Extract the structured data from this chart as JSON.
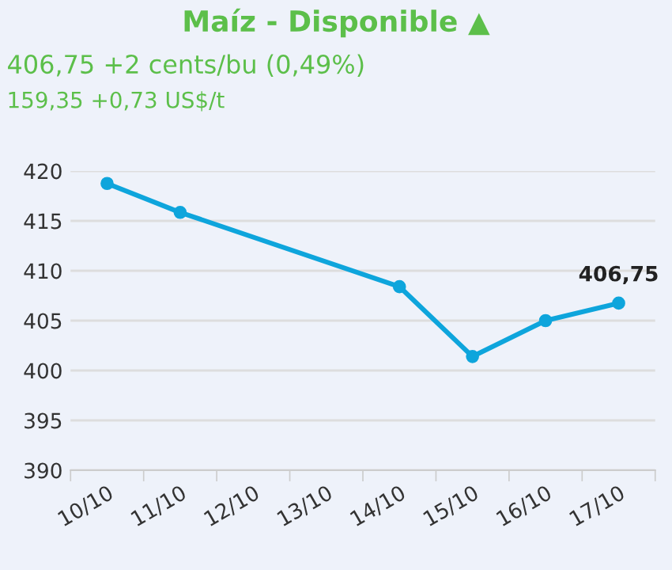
{
  "chart_data": {
    "type": "line",
    "title": "Maíz - Disponible ▲",
    "subtitle": "406,75 +2 cents/bu (0,49%)",
    "annotations": [
      "159,35 +0,73 US$/t"
    ],
    "categories": [
      "10/10",
      "11/10",
      "12/10",
      "13/10",
      "14/10",
      "15/10",
      "16/10",
      "17/10"
    ],
    "series": [
      {
        "color": "#0ea5dc",
        "values": [
          418.75,
          415.85,
          null,
          null,
          408.4,
          401.4,
          405.0,
          406.75
        ],
        "value_labels": [
          null,
          null,
          null,
          null,
          null,
          null,
          null,
          "406,75"
        ]
      }
    ],
    "ylim": [
      390,
      420
    ],
    "yticks": [
      390,
      395,
      400,
      405,
      410,
      415,
      420
    ],
    "grid": "y",
    "marker": "circle",
    "line_style": "solid",
    "legend": false
  }
}
